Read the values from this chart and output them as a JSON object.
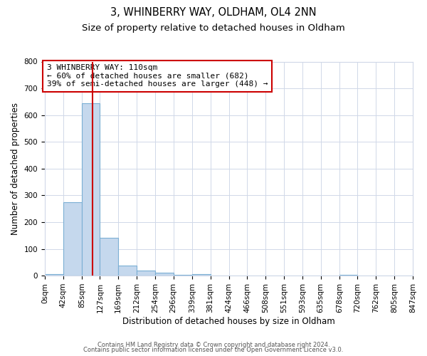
{
  "title": "3, WHINBERRY WAY, OLDHAM, OL4 2NN",
  "subtitle": "Size of property relative to detached houses in Oldham",
  "xlabel": "Distribution of detached houses by size in Oldham",
  "ylabel": "Number of detached properties",
  "bin_edges": [
    0,
    42,
    85,
    127,
    169,
    212,
    254,
    296,
    339,
    381,
    424,
    466,
    508,
    551,
    593,
    635,
    678,
    720,
    762,
    805,
    847
  ],
  "bar_heights": [
    5,
    275,
    645,
    140,
    38,
    18,
    10,
    3,
    5,
    0,
    0,
    0,
    0,
    0,
    0,
    0,
    3,
    0,
    0,
    0
  ],
  "bar_color": "#c5d8ed",
  "bar_edge_color": "#7bafd4",
  "bar_linewidth": 0.8,
  "vline_x": 110,
  "vline_color": "#cc0000",
  "vline_linewidth": 1.5,
  "annotation_line1": "3 WHINBERRY WAY: 110sqm",
  "annotation_line2": "← 60% of detached houses are smaller (682)",
  "annotation_line3": "39% of semi-detached houses are larger (448) →",
  "annotation_fontsize": 8.0,
  "ylim": [
    0,
    800
  ],
  "yticks": [
    0,
    100,
    200,
    300,
    400,
    500,
    600,
    700,
    800
  ],
  "xlim_min": 0,
  "xlim_max": 847,
  "background_color": "#ffffff",
  "grid_color": "#d0d8e8",
  "title_fontsize": 10.5,
  "subtitle_fontsize": 9.5,
  "xlabel_fontsize": 8.5,
  "ylabel_fontsize": 8.5,
  "tick_fontsize": 7.5,
  "footer_line1": "Contains HM Land Registry data © Crown copyright and database right 2024.",
  "footer_line2": "Contains public sector information licensed under the Open Government Licence v3.0.",
  "footer_fontsize": 6.0
}
